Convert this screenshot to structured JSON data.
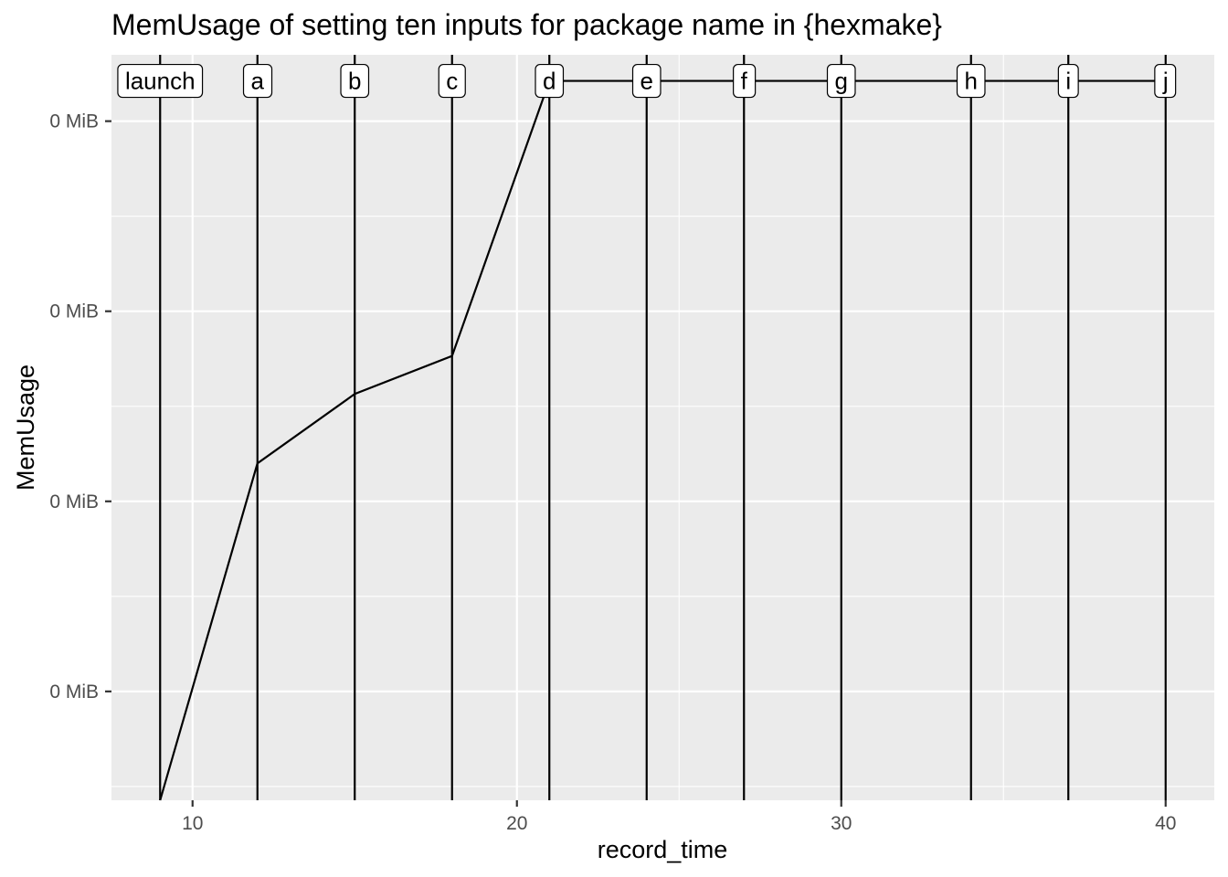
{
  "chart_data": {
    "type": "line",
    "title": "MemUsage of setting ten inputs for package name in {hexmake}",
    "xlabel": "record_time",
    "ylabel": "MemUsage",
    "xlim": [
      7.5,
      41.5
    ],
    "ylim": [
      0.0,
      1.0
    ],
    "x_ticks": [
      10,
      20,
      30,
      40
    ],
    "x_tick_labels": [
      "10",
      "20",
      "30",
      "40"
    ],
    "y_ticks": [
      0.146,
      0.401,
      0.656,
      0.911
    ],
    "y_tick_labels": [
      "0 MiB",
      "0 MiB",
      "0 MiB",
      "0 MiB"
    ],
    "grid": true,
    "legend": "none",
    "colors": {
      "panel": "#EBEBEB",
      "grid": "#FFFFFF",
      "line": "#000000",
      "tick_text": "#4D4D4D"
    },
    "series": [
      {
        "x": [
          9,
          12,
          15,
          18,
          21,
          24,
          27,
          30,
          34,
          37,
          40
        ],
        "y": [
          0.0,
          0.452,
          0.545,
          0.596,
          0.965,
          0.965,
          0.965,
          0.965,
          0.965,
          0.965,
          0.965
        ]
      }
    ],
    "events": [
      {
        "x": 9,
        "label": "launch"
      },
      {
        "x": 12,
        "label": "a"
      },
      {
        "x": 15,
        "label": "b"
      },
      {
        "x": 18,
        "label": "c"
      },
      {
        "x": 21,
        "label": "d"
      },
      {
        "x": 24,
        "label": "e"
      },
      {
        "x": 27,
        "label": "f"
      },
      {
        "x": 30,
        "label": "g"
      },
      {
        "x": 34,
        "label": "h"
      },
      {
        "x": 37,
        "label": "i"
      },
      {
        "x": 40,
        "label": "j"
      }
    ],
    "event_label_y": 0.965
  }
}
